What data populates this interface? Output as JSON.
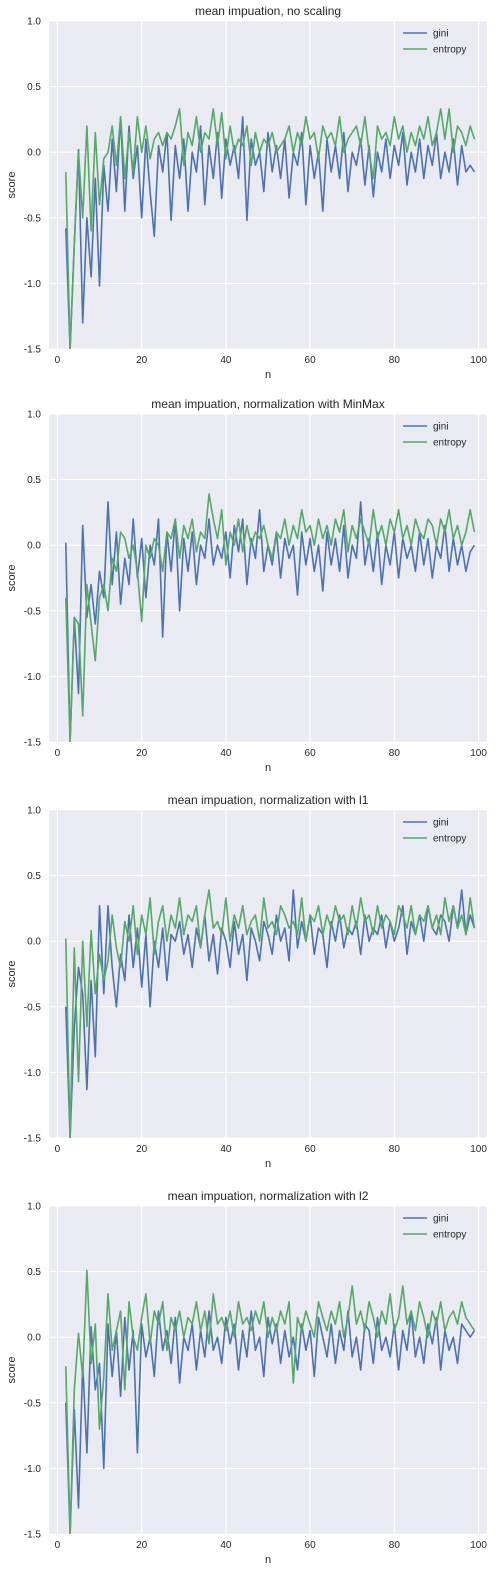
{
  "colors": {
    "gini": "#4c72b0",
    "entropy": "#55a868",
    "plot_bg": "#eaeaf2",
    "grid": "#ffffff"
  },
  "chart_data": [
    {
      "type": "line",
      "title": "mean impuation, no scaling",
      "xlabel": "n",
      "ylabel": "score",
      "xlim": [
        -2,
        102
      ],
      "ylim": [
        -1.5,
        1.0
      ],
      "xticks": [
        0,
        20,
        40,
        60,
        80,
        100
      ],
      "xtick_labels": [
        "0",
        "20",
        "40",
        "60",
        "80",
        "100"
      ],
      "yticks": [
        -1.5,
        -1.0,
        -0.5,
        0.0,
        0.5,
        1.0
      ],
      "ytick_labels": [
        "-1.5",
        "-1.0",
        "-0.5",
        "0.0",
        "0.5",
        "1.0"
      ],
      "grid": true,
      "legend": "top-right",
      "x_start": 2,
      "series": [
        {
          "name": "gini",
          "color": "#4c72b0",
          "values": [
            -0.58,
            -1.5,
            -0.7,
            0.02,
            -1.3,
            -0.5,
            -0.95,
            -0.2,
            -1.02,
            -0.1,
            -0.45,
            0.1,
            -0.3,
            0.27,
            -0.45,
            0.2,
            -0.2,
            0.05,
            -0.5,
            0.1,
            -0.3,
            -0.64,
            0.05,
            -0.15,
            0.15,
            -0.52,
            0.05,
            -0.2,
            0.1,
            -0.45,
            0.0,
            -0.15,
            0.2,
            -0.4,
            0.05,
            -0.2,
            0.15,
            -0.35,
            0.1,
            -0.1,
            0.05,
            -0.2,
            0.27,
            -0.52,
            0.1,
            -0.1,
            0.0,
            -0.3,
            0.15,
            -0.15,
            0.05,
            -0.2,
            0.1,
            -0.35,
            0.0,
            -0.1,
            0.15,
            -0.4,
            0.05,
            -0.2,
            0.0,
            -0.45,
            0.1,
            -0.15,
            0.05,
            -0.2,
            0.15,
            -0.3,
            0.0,
            -0.1,
            0.1,
            -0.25,
            0.05,
            -0.34,
            0.0,
            -0.15,
            0.1,
            -0.2,
            0.05,
            -0.1,
            0.15,
            -0.25,
            0.0,
            -0.15,
            0.1,
            -0.2,
            0.05,
            -0.1,
            0.15,
            -0.2,
            0.0,
            -0.15,
            0.1,
            -0.25,
            0.05,
            -0.15,
            -0.1,
            -0.15
          ]
        },
        {
          "name": "entropy",
          "color": "#55a868",
          "values": [
            -0.15,
            -1.5,
            -0.7,
            0.0,
            -0.5,
            0.2,
            -0.6,
            0.15,
            -0.4,
            -0.05,
            0.0,
            0.2,
            -0.1,
            0.27,
            -0.2,
            0.15,
            -0.15,
            0.27,
            0.0,
            0.2,
            -0.05,
            0.1,
            0.15,
            0.05,
            0.15,
            0.1,
            0.2,
            0.33,
            -0.1,
            0.15,
            0.05,
            0.27,
            0.0,
            0.15,
            0.1,
            0.33,
            0.05,
            0.3,
            -0.05,
            0.2,
            0.0,
            0.1,
            0.05,
            0.2,
            -0.1,
            0.15,
            0.0,
            0.1,
            0.05,
            0.15,
            0.0,
            0.05,
            0.1,
            0.2,
            0.0,
            0.15,
            0.05,
            0.27,
            0.1,
            0.15,
            -0.05,
            0.2,
            0.1,
            0.15,
            0.05,
            0.27,
            0.0,
            0.1,
            0.15,
            0.2,
            0.05,
            0.27,
            0.0,
            -0.2,
            0.2,
            0.1,
            0.15,
            0.05,
            0.27,
            0.1,
            0.2,
            0.0,
            0.15,
            0.05,
            0.2,
            0.1,
            0.27,
            0.05,
            0.15,
            0.33,
            0.1,
            0.33,
            0.0,
            0.2,
            0.15,
            0.05,
            0.2,
            0.1
          ]
        }
      ]
    },
    {
      "type": "line",
      "title": "mean impuation, normalization with MinMax",
      "xlabel": "n",
      "ylabel": "score",
      "xlim": [
        -2,
        102
      ],
      "ylim": [
        -1.5,
        1.0
      ],
      "xticks": [
        0,
        20,
        40,
        60,
        80,
        100
      ],
      "xtick_labels": [
        "0",
        "20",
        "40",
        "60",
        "80",
        "100"
      ],
      "yticks": [
        -1.5,
        -1.0,
        -0.5,
        0.0,
        0.5,
        1.0
      ],
      "ytick_labels": [
        "-1.5",
        "-1.0",
        "-0.5",
        "0.0",
        "0.5",
        "1.0"
      ],
      "grid": true,
      "legend": "top-right",
      "x_start": 2,
      "series": [
        {
          "name": "gini",
          "color": "#4c72b0",
          "values": [
            0.02,
            -1.5,
            -0.55,
            -1.13,
            0.15,
            -0.55,
            -0.3,
            -0.6,
            -0.2,
            -0.4,
            0.33,
            -0.3,
            0.1,
            -0.45,
            -0.1,
            -0.3,
            0.2,
            -0.25,
            0.05,
            -0.4,
            0.0,
            -0.15,
            0.2,
            -0.7,
            0.1,
            -0.2,
            0.2,
            -0.5,
            0.05,
            -0.2,
            0.1,
            -0.3,
            0.0,
            -0.1,
            0.2,
            -0.15,
            0.0,
            -0.1,
            0.1,
            -0.25,
            0.15,
            -0.05,
            0.2,
            -0.3,
            0.05,
            -0.1,
            0.27,
            -0.2,
            0.0,
            -0.15,
            0.1,
            -0.25,
            0.05,
            -0.1,
            0.0,
            -0.38,
            0.1,
            -0.15,
            0.05,
            -0.2,
            0.0,
            -0.35,
            0.1,
            -0.15,
            0.05,
            -0.2,
            0.15,
            -0.25,
            0.0,
            -0.1,
            0.33,
            -0.15,
            0.05,
            -0.2,
            0.1,
            -0.3,
            0.0,
            -0.15,
            0.1,
            -0.25,
            0.05,
            -0.1,
            0.0,
            -0.2,
            0.1,
            -0.15,
            0.05,
            -0.25,
            0.0,
            -0.1,
            0.15,
            -0.2,
            0.05,
            -0.15,
            0.0,
            -0.2,
            -0.05,
            0.0
          ]
        },
        {
          "name": "entropy",
          "color": "#55a868",
          "values": [
            -0.4,
            -1.5,
            -0.55,
            -0.6,
            -1.3,
            -0.3,
            -0.6,
            -0.88,
            -0.4,
            -0.3,
            -0.5,
            -0.1,
            -0.2,
            0.1,
            0.05,
            -0.1,
            0.0,
            -0.2,
            -0.58,
            0.0,
            -0.1,
            0.05,
            0.0,
            -0.2,
            0.1,
            0.05,
            0.2,
            -0.1,
            0.15,
            0.05,
            0.2,
            -0.05,
            0.1,
            0.05,
            0.39,
            0.2,
            0.05,
            0.27,
            -0.15,
            0.1,
            0.0,
            0.2,
            -0.05,
            0.15,
            0.0,
            0.1,
            0.05,
            0.15,
            0.0,
            -0.1,
            0.1,
            0.05,
            0.2,
            0.0,
            0.15,
            0.05,
            0.27,
            0.1,
            0.15,
            0.0,
            0.2,
            0.05,
            0.15,
            0.0,
            0.2,
            0.1,
            0.27,
            -0.05,
            0.15,
            0.05,
            0.2,
            0.1,
            0.0,
            0.27,
            0.05,
            0.15,
            0.0,
            0.2,
            0.1,
            0.27,
            0.05,
            0.15,
            0.0,
            0.2,
            0.1,
            0.05,
            0.2,
            0.15,
            0.0,
            0.2,
            0.1,
            0.27,
            0.05,
            0.15,
            0.0,
            0.1,
            0.27,
            0.1
          ]
        }
      ]
    },
    {
      "type": "line",
      "title": "mean impuation, normalization with l1",
      "xlabel": "n",
      "ylabel": "score",
      "xlim": [
        -2,
        102
      ],
      "ylim": [
        -1.5,
        1.0
      ],
      "xticks": [
        0,
        20,
        40,
        60,
        80,
        100
      ],
      "xtick_labels": [
        "0",
        "20",
        "40",
        "60",
        "80",
        "100"
      ],
      "yticks": [
        -1.5,
        -1.0,
        -0.5,
        0.0,
        0.5,
        1.0
      ],
      "ytick_labels": [
        "-1.5",
        "-1.0",
        "-0.5",
        "0.0",
        "0.5",
        "1.0"
      ],
      "grid": true,
      "legend": "top-right",
      "x_start": 2,
      "series": [
        {
          "name": "gini",
          "color": "#4c72b0",
          "values": [
            -0.5,
            -1.5,
            -0.65,
            -0.2,
            -0.4,
            -1.13,
            -0.3,
            -0.88,
            0.27,
            -0.4,
            0.27,
            -0.2,
            -0.5,
            -0.1,
            -0.3,
            0.2,
            -0.2,
            0.1,
            -0.35,
            0.05,
            -0.5,
            0.0,
            -0.2,
            0.1,
            -0.3,
            0.05,
            0.0,
            0.15,
            -0.1,
            0.05,
            -0.2,
            0.1,
            -0.05,
            0.2,
            -0.15,
            0.05,
            -0.25,
            0.1,
            0.0,
            -0.2,
            0.15,
            -0.1,
            0.05,
            -0.3,
            0.1,
            0.0,
            -0.15,
            0.15,
            0.05,
            -0.1,
            0.2,
            0.0,
            0.1,
            -0.15,
            0.39,
            -0.05,
            0.15,
            0.0,
            0.2,
            -0.1,
            0.1,
            0.05,
            -0.2,
            0.15,
            0.0,
            0.2,
            -0.05,
            0.1,
            0.05,
            0.15,
            -0.1,
            0.2,
            0.0,
            0.1,
            0.05,
            0.2,
            -0.05,
            0.15,
            0.0,
            0.1,
            0.27,
            -0.1,
            0.15,
            0.05,
            0.2,
            0.0,
            0.27,
            0.1,
            0.05,
            0.2,
            0.15,
            0.0,
            0.27,
            0.1,
            0.39,
            0.05,
            0.2,
            0.1
          ]
        },
        {
          "name": "entropy",
          "color": "#55a868",
          "values": [
            0.02,
            -1.5,
            -0.05,
            -1.07,
            0.0,
            -0.65,
            0.08,
            -0.4,
            -0.1,
            -0.3,
            -0.15,
            0.2,
            -0.05,
            -0.2,
            0.15,
            0.0,
            0.27,
            -0.1,
            0.2,
            0.05,
            0.33,
            -0.1,
            0.15,
            0.27,
            0.0,
            0.2,
            0.1,
            0.33,
            0.05,
            0.2,
            0.15,
            0.27,
            -0.05,
            0.2,
            0.39,
            0.1,
            0.15,
            0.05,
            0.33,
            0.0,
            0.2,
            0.1,
            0.27,
            0.05,
            0.15,
            0.2,
            0.0,
            0.33,
            0.1,
            0.15,
            0.05,
            0.27,
            0.2,
            0.1,
            0.15,
            0.05,
            0.33,
            0.0,
            0.2,
            0.15,
            0.27,
            0.05,
            0.2,
            0.1,
            0.27,
            0.15,
            0.2,
            0.05,
            0.27,
            0.1,
            0.33,
            0.15,
            0.2,
            0.05,
            0.27,
            0.1,
            0.2,
            0.15,
            0.05,
            0.27,
            0.2,
            0.1,
            0.27,
            0.05,
            0.2,
            0.15,
            0.27,
            0.1,
            0.2,
            0.05,
            0.33,
            0.15,
            0.27,
            0.1,
            0.2,
            0.05,
            0.33,
            0.1
          ]
        }
      ]
    },
    {
      "type": "line",
      "title": "mean impuation, normalization with l2",
      "xlabel": "n",
      "ylabel": "score",
      "xlim": [
        -2,
        102
      ],
      "ylim": [
        -1.5,
        1.0
      ],
      "xticks": [
        0,
        20,
        40,
        60,
        80,
        100
      ],
      "xtick_labels": [
        "0",
        "20",
        "40",
        "60",
        "80",
        "100"
      ],
      "yticks": [
        -1.5,
        -1.0,
        -0.5,
        0.0,
        0.5,
        1.0
      ],
      "ytick_labels": [
        "-1.5",
        "-1.0",
        "-0.5",
        "0.0",
        "0.5",
        "1.0"
      ],
      "grid": true,
      "legend": "top-right",
      "x_start": 2,
      "series": [
        {
          "name": "gini",
          "color": "#4c72b0",
          "values": [
            -0.5,
            -1.5,
            -0.55,
            -1.3,
            -0.2,
            -0.88,
            0.08,
            -0.4,
            -0.2,
            -1.0,
            0.1,
            -0.3,
            0.05,
            -0.45,
            0.15,
            -0.25,
            0.05,
            -0.88,
            0.1,
            -0.15,
            0.0,
            -0.3,
            0.2,
            -0.1,
            0.05,
            -0.2,
            0.15,
            -0.35,
            0.0,
            -0.1,
            0.1,
            -0.25,
            0.05,
            -0.15,
            0.2,
            -0.1,
            0.0,
            -0.2,
            0.15,
            -0.05,
            0.1,
            -0.25,
            0.05,
            -0.15,
            0.2,
            -0.1,
            0.0,
            -0.3,
            0.15,
            -0.05,
            0.1,
            -0.2,
            0.05,
            -0.15,
            0.0,
            -0.25,
            0.1,
            -0.1,
            0.05,
            -0.3,
            0.15,
            0.0,
            -0.15,
            0.1,
            -0.2,
            0.05,
            -0.1,
            0.2,
            -0.15,
            0.0,
            -0.25,
            0.1,
            0.05,
            -0.2,
            0.15,
            -0.1,
            0.0,
            -0.15,
            0.1,
            -0.25,
            0.05,
            -0.1,
            0.2,
            -0.15,
            0.0,
            -0.2,
            0.1,
            -0.05,
            0.15,
            -0.25,
            0.05,
            -0.1,
            0.0,
            -0.2,
            0.1,
            0.05,
            0.0,
            0.05
          ]
        },
        {
          "name": "entropy",
          "color": "#55a868",
          "values": [
            -0.22,
            -1.5,
            -0.4,
            0.03,
            -0.3,
            0.51,
            -0.2,
            0.1,
            -0.7,
            -0.3,
            0.33,
            -0.1,
            0.05,
            0.2,
            -0.4,
            0.27,
            0.0,
            -0.1,
            0.15,
            0.33,
            -0.05,
            0.2,
            0.1,
            0.27,
            -0.1,
            0.15,
            0.05,
            0.2,
            0.0,
            0.15,
            0.1,
            0.27,
            0.05,
            0.2,
            -0.05,
            0.33,
            0.1,
            0.15,
            0.05,
            0.2,
            0.0,
            0.27,
            0.1,
            0.15,
            0.05,
            0.2,
            0.1,
            0.27,
            0.0,
            0.15,
            0.05,
            0.2,
            0.1,
            0.27,
            -0.35,
            0.15,
            0.05,
            0.2,
            0.1,
            0.0,
            0.27,
            0.15,
            0.05,
            0.2,
            0.1,
            0.27,
            0.0,
            0.15,
            0.39,
            0.1,
            0.2,
            0.05,
            0.27,
            0.15,
            0.0,
            0.2,
            0.1,
            0.33,
            0.05,
            0.15,
            0.39,
            0.1,
            0.2,
            0.05,
            0.27,
            0.15,
            0.0,
            0.2,
            0.1,
            0.27,
            0.05,
            0.15,
            0.2,
            0.1,
            0.27,
            0.15,
            0.1,
            0.05
          ]
        }
      ]
    }
  ]
}
